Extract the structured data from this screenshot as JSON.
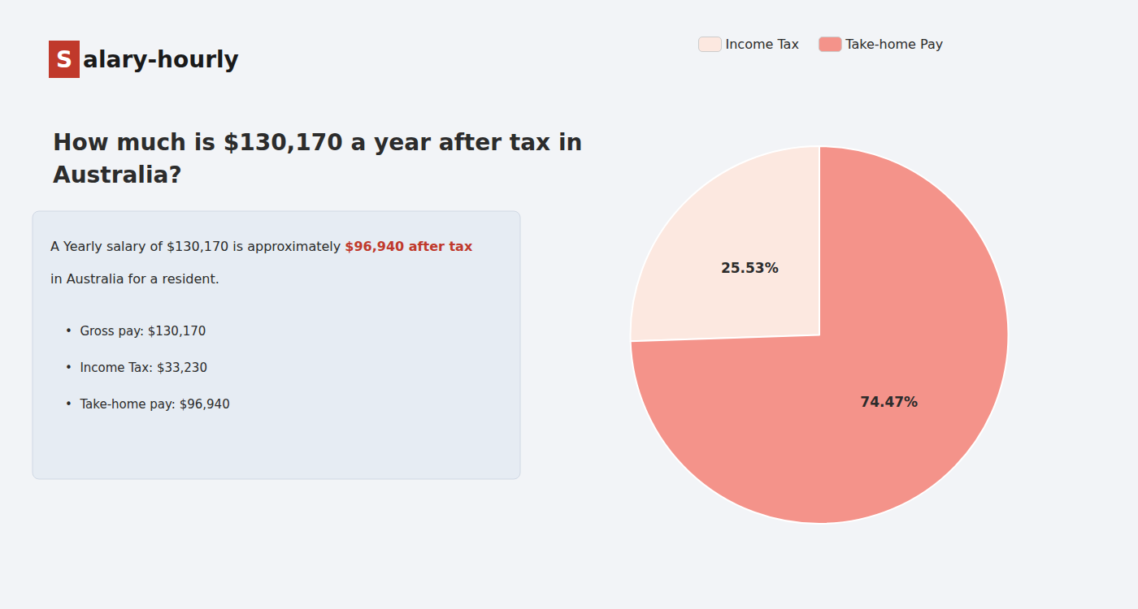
{
  "chart_data": {
    "type": "pie",
    "title": "How much is $130,170 a year after tax in\nAustralia?",
    "categories": [
      "Income Tax",
      "Take-home Pay"
    ],
    "values": [
      25.53,
      74.47
    ],
    "value_labels": [
      "25.53%",
      "74.47%"
    ],
    "colors": [
      "#fce8e0",
      "#f4938a"
    ],
    "data_labels": true,
    "legend": "top",
    "annotations": [
      [
        {
          "text": "S",
          "color": "#c0392b"
        },
        {
          "text": "alary-hourly"
        }
      ],
      [
        {
          "text": "A Yearly salary of $130,170 is approximately "
        },
        {
          "text": "$96,940 after tax",
          "color": "#c0392b"
        }
      ],
      [
        {
          "text": "in Australia for a resident."
        }
      ],
      [
        {
          "text": "•  Gross pay: $130,170"
        }
      ],
      [
        {
          "text": "•  Income Tax: $33,230"
        }
      ],
      [
        {
          "text": "•  Take-home pay: $96,940"
        }
      ]
    ]
  }
}
